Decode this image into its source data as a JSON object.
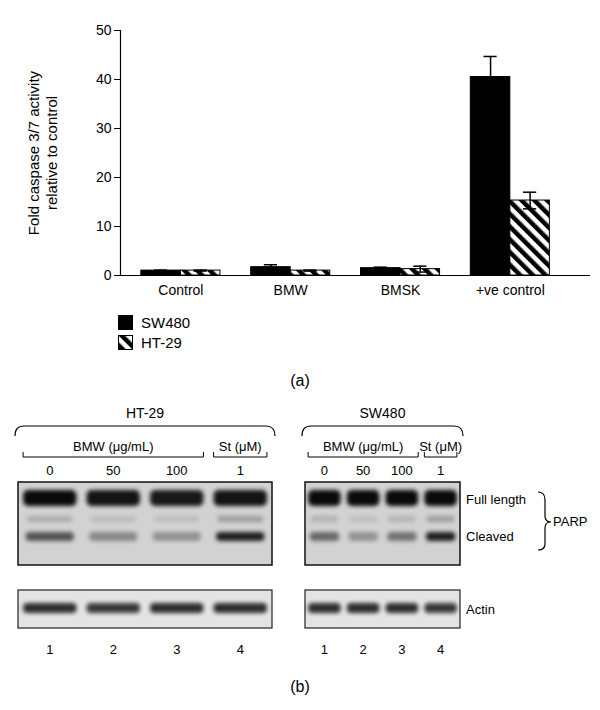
{
  "chart_data": {
    "type": "bar",
    "ylabel": "Fold caspase 3/7 activity\nrelative to control",
    "categories": [
      "Control",
      "BMW",
      "BMSK",
      "+ve control"
    ],
    "series": [
      {
        "name": "SW480",
        "color": "#000000",
        "values": [
          1.0,
          1.7,
          1.5,
          40.5
        ],
        "errors": [
          0.1,
          0.5,
          0.2,
          4.2
        ]
      },
      {
        "name": "HT-29",
        "color": "#000000",
        "marker": "hatched",
        "values": [
          1.0,
          1.0,
          1.3,
          15.3
        ],
        "errors": [
          0.1,
          0.1,
          0.6,
          1.7
        ]
      }
    ],
    "ylim": [
      0,
      50
    ],
    "yticks": [
      0,
      10,
      20,
      30,
      40,
      50
    ],
    "legend": "bottom-left"
  },
  "panel_labels": [
    "(a)",
    "(b)"
  ],
  "blot": {
    "panels": [
      {
        "cell_line": "HT-29",
        "treatments": [
          {
            "label": "BMW (μg/mL)",
            "doses": [
              0,
              50,
              100
            ]
          },
          {
            "label": "St (μM)",
            "doses": [
              1
            ]
          }
        ],
        "lanes": [
          1,
          2,
          3,
          4
        ]
      },
      {
        "cell_line": "SW480",
        "treatments": [
          {
            "label": "BMW (μg/mL)",
            "doses": [
              0,
              50,
              100
            ]
          },
          {
            "label": "St (μM)",
            "doses": [
              1
            ]
          }
        ],
        "lanes": [
          1,
          2,
          3,
          4
        ]
      }
    ],
    "band_labels": [
      "Full length",
      "Cleaved"
    ],
    "protein": "PARP",
    "loading_control": "Actin"
  }
}
